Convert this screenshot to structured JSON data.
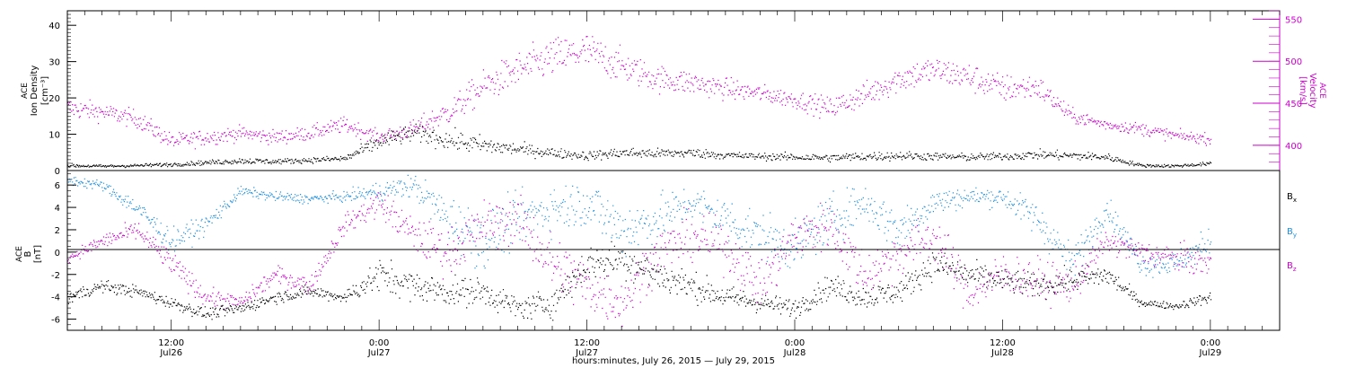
{
  "chart_data": [
    {
      "type": "scatter",
      "panel": "top",
      "ylabel_left": [
        "ACE",
        "Ion Density",
        "[cm⁻³]"
      ],
      "ylabel_right": [
        "ACE",
        "Velocity",
        "[km/s]"
      ],
      "ylim_left": [
        0,
        44
      ],
      "ylim_right": [
        370,
        560
      ],
      "yticks_left": [
        "0",
        "10",
        "20",
        "30",
        "40"
      ],
      "yticks_right": [
        "400",
        "450",
        "500",
        "550"
      ],
      "colors": {
        "density": "#000000",
        "velocity": "#cc00cc"
      },
      "series": [
        {
          "name": "Ion Density",
          "axis": "left",
          "color": "#000000",
          "x_hours": [
            0,
            2,
            4,
            6,
            8,
            10,
            12,
            14,
            16,
            18,
            20,
            22,
            24,
            26,
            28,
            30,
            32,
            34,
            36,
            38,
            40,
            42,
            44,
            46,
            48,
            50,
            52,
            54,
            56,
            58,
            60,
            62,
            64,
            66
          ],
          "y": [
            1.5,
            1.3,
            1.5,
            1.8,
            2.3,
            2.8,
            2.6,
            3.0,
            3.4,
            8.0,
            10.5,
            8.5,
            7.0,
            6.0,
            5.0,
            4.2,
            5.0,
            4.8,
            5.0,
            4.3,
            4.0,
            3.8,
            3.6,
            4.0,
            4.2,
            4.0,
            3.8,
            4.0,
            4.5,
            4.2,
            3.8,
            1.5,
            1.4,
            2.0
          ],
          "scatter": [
            0.5,
            0.4,
            0.4,
            0.5,
            0.6,
            0.8,
            0.7,
            0.7,
            0.9,
            2.2,
            2.2,
            2.5,
            2.5,
            1.6,
            1.3,
            1.2,
            1.4,
            1.3,
            1.3,
            1.0,
            0.9,
            1.0,
            1.0,
            1.2,
            1.2,
            1.0,
            1.0,
            1.0,
            1.2,
            1.2,
            1.0,
            0.4,
            0.4,
            0.5
          ]
        },
        {
          "name": "Velocity",
          "axis": "right",
          "color": "#cc00cc",
          "x_hours": [
            0,
            2,
            4,
            6,
            8,
            10,
            12,
            14,
            16,
            18,
            20,
            22,
            24,
            26,
            28,
            30,
            32,
            34,
            36,
            38,
            40,
            42,
            44,
            46,
            48,
            50,
            52,
            54,
            56,
            58,
            60,
            62,
            64,
            66
          ],
          "y": [
            445,
            440,
            432,
            405,
            410,
            415,
            410,
            415,
            425,
            410,
            420,
            440,
            470,
            490,
            505,
            512,
            495,
            480,
            475,
            468,
            462,
            455,
            445,
            460,
            480,
            490,
            482,
            468,
            470,
            435,
            425,
            420,
            412,
            408
          ],
          "scatter": [
            12,
            10,
            10,
            9,
            9,
            8,
            8,
            8,
            9,
            7,
            10,
            14,
            18,
            20,
            22,
            22,
            18,
            15,
            14,
            12,
            10,
            10,
            12,
            14,
            16,
            16,
            16,
            16,
            14,
            8,
            6,
            7,
            6,
            6
          ]
        }
      ]
    },
    {
      "type": "scatter",
      "panel": "bottom",
      "ylabel": [
        "ACE",
        "B",
        "[nT]"
      ],
      "ylim": [
        -7,
        7.3
      ],
      "yticks": [
        "-6",
        "-4",
        "-2",
        "0",
        "2",
        "4",
        "6"
      ],
      "legend": [
        {
          "name": "B",
          "sub": "x",
          "color": "#000000"
        },
        {
          "name": "B",
          "sub": "y",
          "color": "#1f8fdf"
        },
        {
          "name": "B",
          "sub": "z",
          "color": "#cc00cc"
        }
      ],
      "series": [
        {
          "name": "Bx",
          "color": "#000000",
          "x_hours": [
            0,
            2,
            4,
            6,
            8,
            10,
            12,
            14,
            16,
            18,
            20,
            22,
            24,
            26,
            28,
            30,
            32,
            34,
            36,
            38,
            40,
            42,
            44,
            46,
            48,
            50,
            52,
            54,
            56,
            58,
            60,
            62,
            64,
            66
          ],
          "y": [
            -4.0,
            -3.0,
            -3.5,
            -4.5,
            -5.5,
            -5.0,
            -4.0,
            -3.5,
            -4.0,
            -2.0,
            -3.0,
            -3.5,
            -3.5,
            -5.0,
            -4.5,
            -1.0,
            -0.5,
            -2.0,
            -3.0,
            -4.0,
            -4.5,
            -5.0,
            -3.0,
            -4.0,
            -3.5,
            -1.0,
            -2.0,
            -2.5,
            -3.0,
            -2.5,
            -2.0,
            -4.5,
            -4.8,
            -4.0
          ],
          "scatter": [
            0.6,
            0.5,
            0.5,
            0.5,
            0.5,
            0.5,
            0.5,
            0.5,
            0.5,
            1.5,
            1.2,
            1.2,
            1.2,
            1.0,
            1.2,
            1.5,
            1.5,
            1.5,
            1.2,
            1.0,
            0.8,
            0.8,
            1.0,
            1.0,
            1.0,
            1.2,
            1.2,
            1.0,
            1.0,
            1.0,
            1.0,
            0.3,
            0.3,
            0.5
          ]
        },
        {
          "name": "By",
          "color": "#1f8fdf",
          "x_hours": [
            0,
            2,
            4,
            6,
            8,
            10,
            12,
            14,
            16,
            18,
            20,
            22,
            24,
            26,
            28,
            30,
            32,
            34,
            36,
            38,
            40,
            42,
            44,
            46,
            48,
            50,
            52,
            54,
            56,
            58,
            60,
            62,
            64,
            66
          ],
          "y": [
            6.5,
            6.0,
            4.0,
            1.0,
            2.5,
            5.5,
            5.0,
            4.8,
            5.0,
            5.5,
            6.0,
            3.0,
            1.0,
            3.0,
            4.0,
            4.5,
            2.0,
            3.0,
            4.5,
            3.0,
            1.5,
            0.5,
            3.0,
            4.5,
            2.0,
            4.5,
            5.0,
            5.0,
            3.0,
            -1.0,
            4.0,
            -1.0,
            -1.0,
            1.0
          ],
          "scatter": [
            0.5,
            0.4,
            0.8,
            1.0,
            0.8,
            0.4,
            0.4,
            0.4,
            0.4,
            0.8,
            1.0,
            2.0,
            2.5,
            2.0,
            2.0,
            2.0,
            2.5,
            2.0,
            1.5,
            2.0,
            2.0,
            2.0,
            2.0,
            1.5,
            2.0,
            1.2,
            0.8,
            0.8,
            1.5,
            1.5,
            1.0,
            1.0,
            1.0,
            1.2
          ]
        },
        {
          "name": "Bz",
          "color": "#cc00cc",
          "x_hours": [
            0,
            2,
            4,
            6,
            8,
            10,
            12,
            14,
            16,
            18,
            20,
            22,
            24,
            26,
            28,
            30,
            32,
            34,
            36,
            38,
            40,
            42,
            44,
            46,
            48,
            50,
            52,
            54,
            56,
            58,
            60,
            62,
            64,
            66
          ],
          "y": [
            -0.5,
            1.0,
            2.0,
            -1.0,
            -4.0,
            -4.5,
            -2.0,
            -3.0,
            2.5,
            4.5,
            1.5,
            0.0,
            2.5,
            3.0,
            -1.0,
            -3.0,
            -4.5,
            0.0,
            1.5,
            0.5,
            -3.0,
            1.5,
            2.5,
            -2.0,
            0.0,
            1.5,
            -3.5,
            -2.0,
            -2.5,
            -3.0,
            1.0,
            0.0,
            -0.5,
            -1.0
          ],
          "scatter": [
            0.4,
            0.6,
            0.8,
            1.0,
            0.8,
            0.6,
            0.8,
            0.8,
            0.8,
            1.2,
            1.5,
            2.0,
            2.0,
            2.0,
            2.5,
            2.5,
            2.0,
            2.0,
            2.0,
            2.0,
            2.0,
            2.0,
            2.0,
            2.0,
            2.0,
            2.0,
            1.8,
            1.8,
            1.8,
            1.5,
            1.0,
            1.0,
            1.2,
            1.2
          ]
        }
      ]
    }
  ],
  "x_axis": {
    "range_hours_from_start": [
      0,
      70
    ],
    "ticks": [
      {
        "hours": 6,
        "time": "12:00",
        "date": "Jul26"
      },
      {
        "hours": 18,
        "time": "0:00",
        "date": "Jul27"
      },
      {
        "hours": 30,
        "time": "12:00",
        "date": "Jul27"
      },
      {
        "hours": 42,
        "time": "0:00",
        "date": "Jul28"
      },
      {
        "hours": 54,
        "time": "12:00",
        "date": "Jul28"
      },
      {
        "hours": 66,
        "time": "0:00",
        "date": "Jul29"
      }
    ],
    "label": "hours:minutes, July 26, 2015 — July 29, 2015"
  }
}
